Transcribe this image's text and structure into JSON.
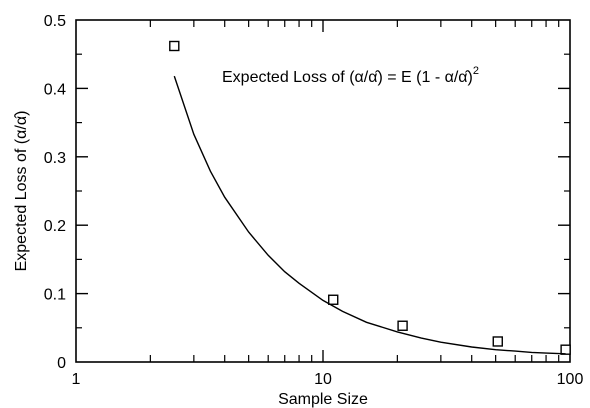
{
  "chart_data": {
    "type": "scatter",
    "title": "",
    "xlabel": "Sample Size",
    "ylabel": "Expected Loss of (α/α̂)",
    "xscale": "log",
    "xlim": [
      1,
      100
    ],
    "ylim": [
      0,
      0.5
    ],
    "x_tick_labels": [
      "1",
      "10",
      "100"
    ],
    "y_tick_labels": [
      "0",
      "0.1",
      "0.2",
      "0.3",
      "0.4",
      "0.5"
    ],
    "y_ticks": [
      0,
      0.1,
      0.2,
      0.3,
      0.4,
      0.5
    ],
    "x_ticks": [
      1,
      10,
      100
    ],
    "grid": false,
    "annotation": {
      "prefix": "Expected Loss of (α/α̂) = E (1 - α/α̂)",
      "superscript": "2"
    },
    "series": [
      {
        "type": "scatter",
        "marker": "open-square",
        "x": [
          2.5,
          11,
          21,
          51,
          96
        ],
        "y": [
          0.462,
          0.091,
          0.053,
          0.03,
          0.018
        ]
      },
      {
        "type": "line",
        "x": [
          2.5,
          3,
          3.5,
          4,
          5,
          6,
          7,
          8,
          10,
          12,
          15,
          20,
          25,
          30,
          40,
          50,
          60,
          70,
          80,
          96
        ],
        "y": [
          0.418,
          0.333,
          0.279,
          0.241,
          0.19,
          0.156,
          0.132,
          0.115,
          0.09,
          0.074,
          0.058,
          0.044,
          0.035,
          0.029,
          0.022,
          0.018,
          0.016,
          0.014,
          0.013,
          0.012
        ]
      }
    ]
  }
}
